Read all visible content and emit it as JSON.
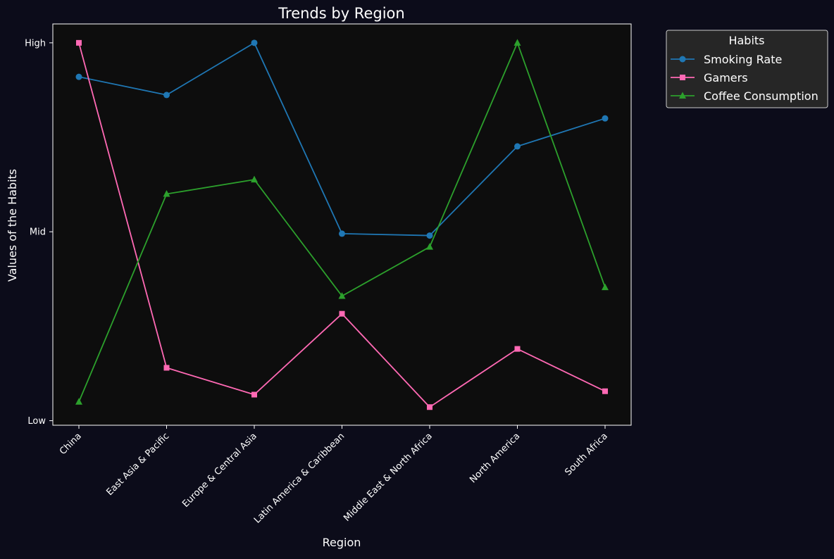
{
  "chart_data": {
    "type": "line",
    "title": "Trends by Region",
    "xlabel": "Region",
    "ylabel": "Values of the Habits",
    "categories": [
      "China",
      "East Asia & Pacific",
      "Europe & Central Asia",
      "Latin America & Caribbean",
      "Middle East & North Africa",
      "North America",
      "South Africa"
    ],
    "y_ticks": [
      {
        "value": 0.0,
        "label": "Low"
      },
      {
        "value": 0.5,
        "label": "Mid"
      },
      {
        "value": 1.0,
        "label": "High"
      }
    ],
    "ylim": [
      -0.012,
      1.05
    ],
    "grid": false,
    "legend": {
      "title": "Habits",
      "placement": "outside-top-right"
    },
    "series": [
      {
        "name": "Smoking Rate",
        "color": "#1f77b4",
        "marker": "circle",
        "values": [
          0.91,
          0.862,
          1.0,
          0.495,
          0.49,
          0.726,
          0.8
        ]
      },
      {
        "name": "Gamers",
        "color": "#ff69b4",
        "marker": "square",
        "values": [
          1.0,
          0.14,
          0.069,
          0.283,
          0.036,
          0.19,
          0.078
        ]
      },
      {
        "name": "Coffee Consumption",
        "color": "#2ca02c",
        "marker": "triangle",
        "values": [
          0.05,
          0.6,
          0.638,
          0.33,
          0.46,
          1.0,
          0.353
        ]
      }
    ],
    "colors": {
      "figure_background": "#0c0c1a",
      "plot_background": "#0d0d0d",
      "axes": "#ffffff",
      "text": "#ffffff",
      "legend_background": "#262626"
    }
  }
}
